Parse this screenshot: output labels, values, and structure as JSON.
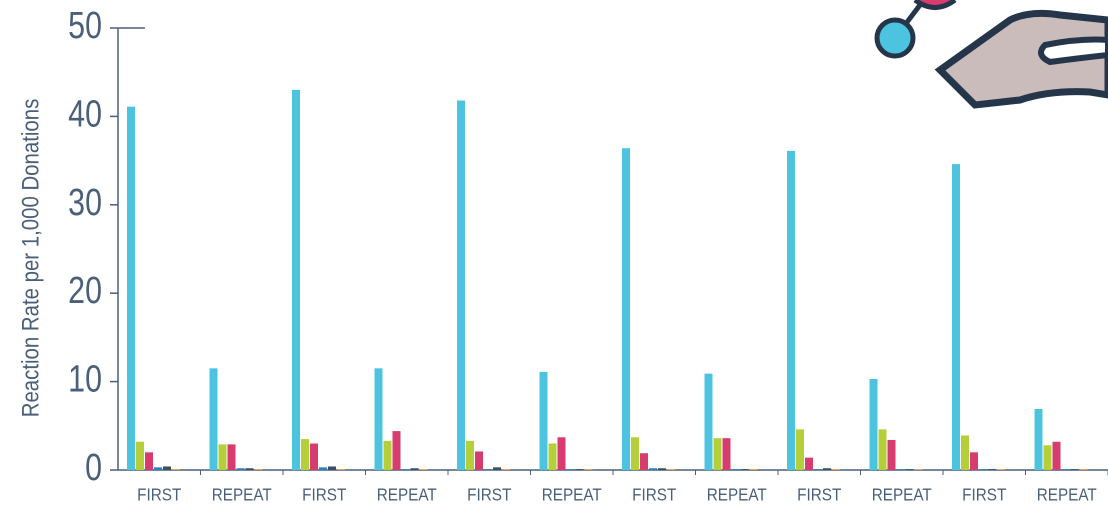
{
  "chart_data": {
    "type": "bar",
    "y_label": "Reaction Rate per 1,000 Donations",
    "categories": [
      "FIRST",
      "REPEAT",
      "FIRST",
      "REPEAT",
      "FIRST",
      "REPEAT",
      "FIRST",
      "REPEAT",
      "FIRST",
      "REPEAT",
      "FIRST",
      "REPEAT"
    ],
    "series": [
      {
        "color": "#4cc3df",
        "values": [
          41.1,
          11.5,
          43,
          11.5,
          41.8,
          11.1,
          36.4,
          10.9,
          36.1,
          10.3,
          34.6,
          6.9
        ]
      },
      {
        "color": "#b5cf3a",
        "values": [
          3.2,
          2.9,
          3.5,
          3.3,
          3.3,
          3.0,
          3.7,
          3.6,
          4.6,
          4.6,
          3.9,
          2.8
        ]
      },
      {
        "color": "#d63c6e",
        "values": [
          2.0,
          2.9,
          3.0,
          4.4,
          2.1,
          3.7,
          1.9,
          3.6,
          1.4,
          3.4,
          2.0,
          3.2
        ]
      },
      {
        "color": "#2f7fc1",
        "values": [
          0.3,
          0.2,
          0.3,
          0.1,
          0.1,
          0.1,
          0.2,
          0.1,
          0.1,
          0.1,
          0.1,
          0.1
        ]
      },
      {
        "color": "#3c4f66",
        "values": [
          0.4,
          0.2,
          0.4,
          0.2,
          0.3,
          0.1,
          0.2,
          0.1,
          0.2,
          0.1,
          0.1,
          0.1
        ]
      },
      {
        "color": "#f0a640",
        "values": [
          0.1,
          0.1,
          0.1,
          0.1,
          0.1,
          0.1,
          0.1,
          0.1,
          0.1,
          0.1,
          0.1,
          0.1
        ]
      }
    ],
    "ylim": [
      0,
      50
    ],
    "yticks": [
      0,
      10,
      20,
      30,
      40,
      50
    ],
    "grid": false
  }
}
